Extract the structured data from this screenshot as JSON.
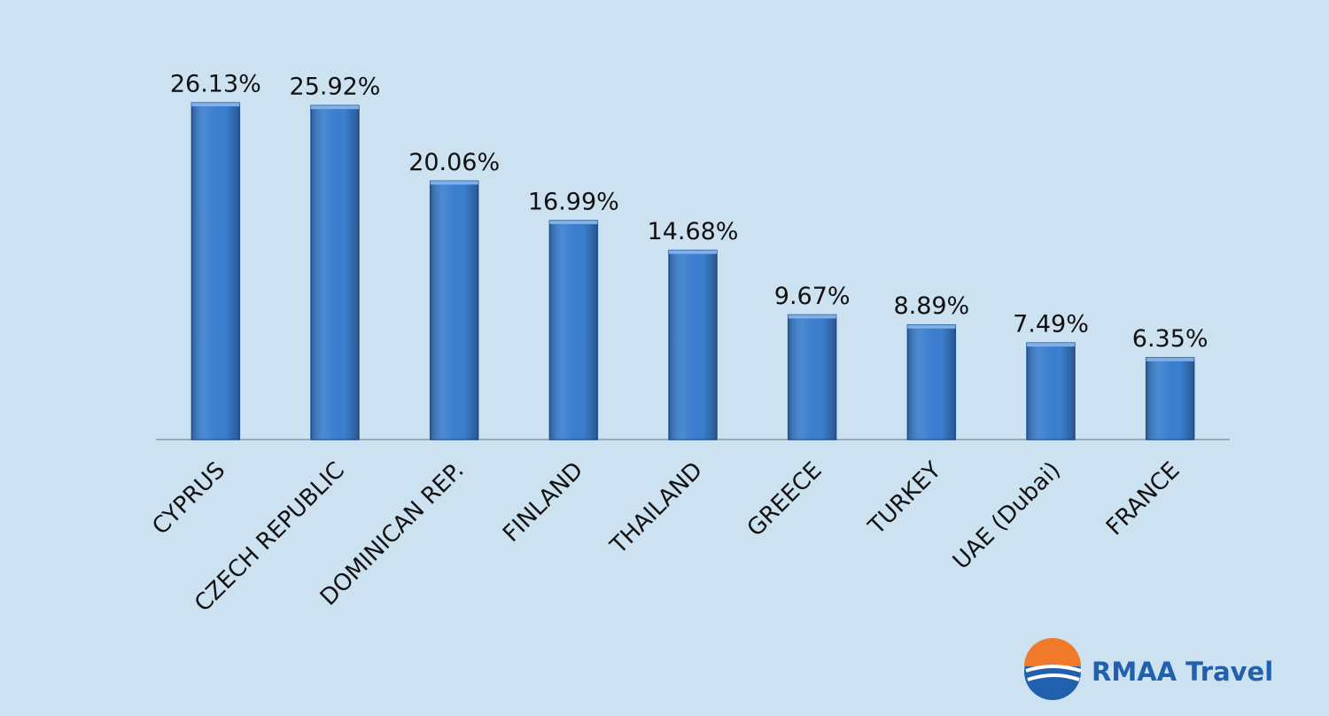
{
  "chart_data": {
    "type": "bar",
    "categories": [
      "CYPRUS",
      "CZECH REPUBLIC",
      "DOMINICAN REP.",
      "FINLAND",
      "THAILAND",
      "GREECE",
      "TURKEY",
      "UAE (Dubai)",
      "FRANCE"
    ],
    "values": [
      26.13,
      25.92,
      20.06,
      16.99,
      14.68,
      9.67,
      8.89,
      7.49,
      6.35
    ],
    "value_labels": [
      "26.13%",
      "25.92%",
      "20.06%",
      "16.99%",
      "14.68%",
      "9.67%",
      "8.89%",
      "7.49%",
      "6.35%"
    ],
    "color": "#3a7fd0"
  },
  "logo": {
    "text": "RMAA Travel"
  }
}
